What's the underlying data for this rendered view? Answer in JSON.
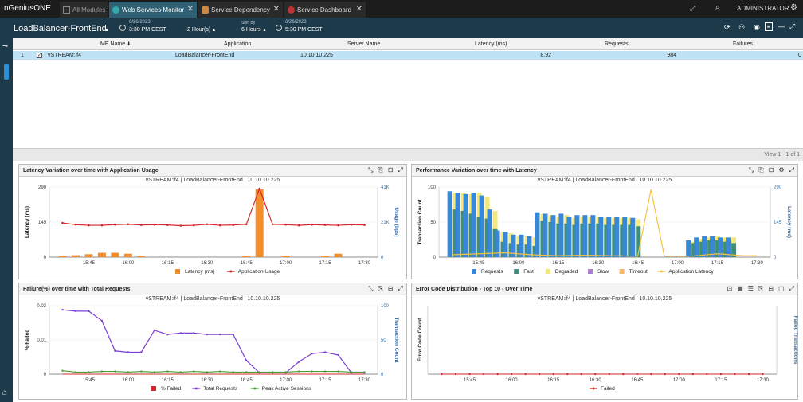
{
  "app": {
    "logo": "nGeniusONE",
    "user": "ADMINISTRATOR"
  },
  "tabs": [
    {
      "label": "All Modules"
    },
    {
      "label": "Web Services Monitor"
    },
    {
      "label": "Service Dependency"
    },
    {
      "label": "Service Dashboard"
    }
  ],
  "context": {
    "title": "LoadBalancer-FrontEnd",
    "start_date": "6/26/2023",
    "start_time": "3:30 PM CEST",
    "range": "2 Hour(s)",
    "shift_label": "Shift By",
    "shift": "6 Hours",
    "end_date": "6/26/2023",
    "end_time": "5:30 PM CEST"
  },
  "grid": {
    "columns": [
      "ME Name",
      "Application",
      "Server Name",
      "Latency (ms)",
      "Requests",
      "Failures"
    ],
    "rows": [
      {
        "index": "1",
        "me": "vSTREAM:if4",
        "app": "LoadBalancer-FrontEnd",
        "server": "10.10.10.225",
        "latency": "8.92",
        "requests": "984",
        "failures": "0"
      }
    ],
    "footer": "View 1 - 1 of 1"
  },
  "panels": {
    "latency": {
      "title": "Latency Variation over time with Application Usage",
      "subtitle": "vSTREAM:if4 | LoadBalancer-FrontEnd | 10.10.10.225",
      "ylabel": "Latency (ms)",
      "y2label": "Usage (bps)",
      "legend": [
        "Latency (ms)",
        "Application Usage"
      ],
      "colors": [
        "#f28e2b",
        "#d62728"
      ]
    },
    "performance": {
      "title": "Performance Variation over time with Latency",
      "subtitle": "vSTREAM:if4 | LoadBalancer-FrontEnd | 10.10.10.225",
      "ylabel": "Transaction Count",
      "y2label": "Latency (ms)",
      "legend": [
        "Requests",
        "Fast",
        "Degraded",
        "Slow",
        "Timeout",
        "Application Latency"
      ],
      "colors": [
        "#3a87d6",
        "#3e8e7e",
        "#f2e97a",
        "#b07fd1",
        "#f3b46e",
        "#f5c242"
      ]
    },
    "failure": {
      "title": "Failure(%) over time with Total Requests",
      "subtitle": "vSTREAM:if4 | LoadBalancer-FrontEnd | 10.10.10.225",
      "ylabel": "% Failed",
      "y2label": "Transaction Count",
      "legend": [
        "% Failed",
        "Total Requests",
        "Peak Active Sessions"
      ],
      "colors": [
        "#d62728",
        "#7b3fd1",
        "#4c9a3a"
      ]
    },
    "errors": {
      "title": "Error Code Distribution - Top 10 - Over Time",
      "subtitle": "vSTREAM:if4 | LoadBalancer-FrontEnd | 10.10.10.225",
      "ylabel": "Error Code Count",
      "y2label": "Failed Transactions",
      "legend": [
        "Failed"
      ],
      "colors": [
        "#d62728"
      ]
    }
  },
  "chart_data": [
    {
      "type": "bar",
      "title": "Latency Variation over time with Application Usage",
      "ylabel": "Latency (ms)",
      "y2label": "Usage (bps)",
      "x_ticks": [
        "15:45",
        "16:00",
        "16:15",
        "16:30",
        "16:45",
        "17:00",
        "17:15",
        "17:30"
      ],
      "yticks": [
        "0",
        "145",
        "290"
      ],
      "y2ticks": [
        "0",
        "21K",
        "41K"
      ],
      "ylim": [
        0,
        290
      ],
      "y2lim": [
        0,
        41000
      ],
      "series": [
        {
          "name": "Latency (ms)",
          "type": "bar",
          "x": [
            "15:35",
            "15:40",
            "15:45",
            "15:50",
            "15:55",
            "16:00",
            "16:05",
            "16:45",
            "16:50",
            "17:00",
            "17:15",
            "17:20"
          ],
          "values": [
            6,
            8,
            12,
            18,
            18,
            14,
            6,
            4,
            280,
            4,
            4,
            14
          ]
        },
        {
          "name": "Application Usage",
          "type": "line",
          "x": [
            "15:35",
            "15:40",
            "15:45",
            "15:50",
            "15:55",
            "16:00",
            "16:05",
            "16:10",
            "16:15",
            "16:20",
            "16:25",
            "16:30",
            "16:35",
            "16:40",
            "16:45",
            "16:50",
            "16:55",
            "17:00",
            "17:05",
            "17:10",
            "17:15",
            "17:20",
            "17:25",
            "17:30"
          ],
          "values": [
            20000,
            19000,
            18600,
            18600,
            19000,
            19200,
            18800,
            19000,
            18800,
            18400,
            18600,
            19200,
            18600,
            18800,
            19200,
            40000,
            19200,
            19000,
            18600,
            19000,
            18800,
            18600,
            19000,
            18800
          ]
        }
      ]
    },
    {
      "type": "bar",
      "title": "Performance Variation over time with Latency",
      "ylabel": "Transaction Count",
      "y2label": "Latency (ms)",
      "x_ticks": [
        "15:45",
        "16:00",
        "16:15",
        "16:30",
        "16:45",
        "17:00",
        "17:15",
        "17:30"
      ],
      "yticks": [
        "0",
        "50",
        "100"
      ],
      "y2ticks": [
        "0",
        "145",
        "290"
      ],
      "ylim": [
        0,
        100
      ],
      "y2lim": [
        0,
        290
      ],
      "x": [
        "15:35",
        "15:38",
        "15:41",
        "15:44",
        "15:47",
        "15:50",
        "15:53",
        "15:56",
        "15:59",
        "16:02",
        "16:05",
        "16:08",
        "16:11",
        "16:14",
        "16:17",
        "16:20",
        "16:23",
        "16:26",
        "16:29",
        "16:32",
        "16:35",
        "16:38",
        "16:41",
        "16:44",
        "17:05",
        "17:08",
        "17:11",
        "17:14",
        "17:17",
        "17:20"
      ],
      "series": [
        {
          "name": "Requests",
          "values": [
            94,
            92,
            90,
            92,
            88,
            68,
            38,
            36,
            32,
            32,
            30,
            64,
            62,
            60,
            62,
            58,
            60,
            60,
            60,
            58,
            58,
            58,
            58,
            56,
            24,
            28,
            30,
            30,
            28,
            28
          ]
        },
        {
          "name": "Fast",
          "values": [
            68,
            66,
            62,
            58,
            55,
            40,
            22,
            20,
            18,
            18,
            16,
            52,
            50,
            48,
            48,
            46,
            48,
            48,
            48,
            46,
            46,
            46,
            46,
            44,
            20,
            22,
            24,
            24,
            22,
            20
          ]
        },
        {
          "name": "Degraded",
          "values": [
            92,
            92,
            90,
            92,
            86,
            66,
            36,
            34,
            30,
            30,
            28,
            62,
            60,
            58,
            60,
            56,
            58,
            58,
            58,
            56,
            56,
            56,
            56,
            54,
            22,
            26,
            28,
            30,
            28,
            28
          ]
        },
        {
          "name": "Slow",
          "values": [
            0,
            0,
            0,
            0,
            0,
            0,
            0,
            0,
            0,
            0,
            0,
            0,
            0,
            0,
            0,
            0,
            0,
            0,
            0,
            0,
            0,
            0,
            0,
            0,
            0,
            0,
            0,
            0,
            0,
            0
          ]
        },
        {
          "name": "Timeout",
          "values": [
            0,
            0,
            0,
            0,
            0,
            0,
            0,
            0,
            0,
            0,
            0,
            0,
            0,
            0,
            0,
            0,
            0,
            0,
            0,
            0,
            0,
            0,
            0,
            0,
            0,
            0,
            0,
            0,
            0,
            0
          ]
        },
        {
          "name": "Application Latency",
          "type": "line",
          "x": [
            "15:35",
            "15:45",
            "15:55",
            "16:05",
            "16:15",
            "16:25",
            "16:35",
            "16:45",
            "16:50",
            "16:55",
            "17:05",
            "17:15",
            "17:25",
            "17:30"
          ],
          "values": [
            10,
            14,
            18,
            10,
            6,
            8,
            6,
            4,
            280,
            4,
            4,
            14,
            6,
            6
          ]
        }
      ]
    },
    {
      "type": "line",
      "title": "Failure(%) over time with Total Requests",
      "ylabel": "% Failed",
      "y2label": "Transaction Count",
      "x_ticks": [
        "15:45",
        "16:00",
        "16:15",
        "16:30",
        "16:45",
        "17:00",
        "17:15",
        "17:30"
      ],
      "yticks": [
        "0",
        "0.01",
        "0.02"
      ],
      "y2ticks": [
        "0",
        "50",
        "100"
      ],
      "ylim": [
        0,
        0.02
      ],
      "y2lim": [
        0,
        100
      ],
      "series": [
        {
          "name": "% Failed",
          "x": [
            "15:35",
            "17:30"
          ],
          "values": [
            0,
            0
          ]
        },
        {
          "name": "Total Requests",
          "x": [
            "15:35",
            "15:40",
            "15:45",
            "15:50",
            "15:55",
            "16:00",
            "16:05",
            "16:10",
            "16:15",
            "16:20",
            "16:25",
            "16:30",
            "16:35",
            "16:40",
            "16:45",
            "16:50",
            "16:55",
            "17:00",
            "17:05",
            "17:10",
            "17:15",
            "17:20",
            "17:25",
            "17:30"
          ],
          "values": [
            94,
            92,
            92,
            78,
            34,
            32,
            32,
            64,
            58,
            60,
            60,
            58,
            58,
            58,
            20,
            2,
            2,
            2,
            18,
            30,
            32,
            28,
            2,
            2
          ]
        },
        {
          "name": "Peak Active Sessions",
          "x": [
            "15:35",
            "15:40",
            "15:45",
            "15:50",
            "15:55",
            "16:00",
            "16:05",
            "16:10",
            "16:15",
            "16:20",
            "16:25",
            "16:30",
            "16:35",
            "16:40",
            "16:45",
            "16:50",
            "16:55",
            "17:00",
            "17:05",
            "17:10",
            "17:15",
            "17:20",
            "17:25",
            "17:30"
          ],
          "values": [
            5,
            3,
            3,
            4,
            4,
            3,
            4,
            3,
            4,
            3,
            4,
            3,
            4,
            3,
            3,
            3,
            3,
            3,
            4,
            4,
            4,
            4,
            3,
            3
          ]
        }
      ]
    },
    {
      "type": "line",
      "title": "Error Code Distribution - Top 10 - Over Time",
      "ylabel": "Error Code Count",
      "y2label": "Failed Transactions",
      "x_ticks": [
        "15:45",
        "16:00",
        "16:15",
        "16:30",
        "16:45",
        "17:00",
        "17:15",
        "17:30"
      ],
      "series": [
        {
          "name": "Failed",
          "x": [
            "15:35",
            "15:40",
            "15:45",
            "15:50",
            "15:55",
            "16:00",
            "16:05",
            "16:10",
            "16:15",
            "16:20",
            "16:25",
            "16:30",
            "16:35",
            "16:40",
            "16:45",
            "16:50",
            "16:55",
            "17:00",
            "17:05",
            "17:10",
            "17:15",
            "17:20",
            "17:25",
            "17:30"
          ],
          "values": [
            0,
            0,
            0,
            0,
            0,
            0,
            0,
            0,
            0,
            0,
            0,
            0,
            0,
            0,
            0,
            0,
            0,
            0,
            0,
            0,
            0,
            0,
            0,
            0
          ]
        }
      ]
    }
  ]
}
